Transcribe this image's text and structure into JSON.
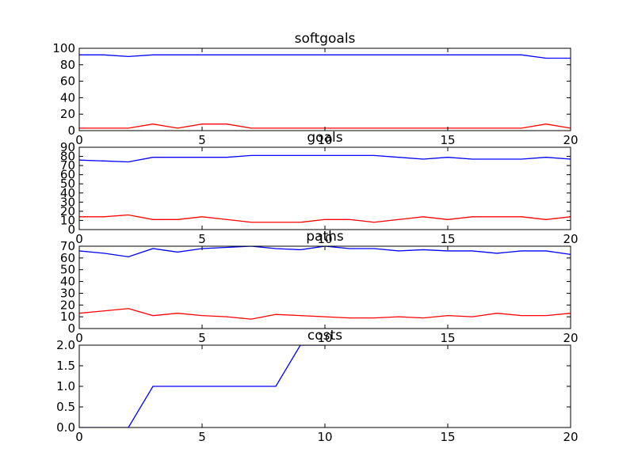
{
  "chart_data": [
    {
      "type": "line",
      "title": "softgoals",
      "xlim": [
        0,
        20
      ],
      "ylim": [
        0,
        100
      ],
      "xticks": [
        0,
        5,
        10,
        15,
        20
      ],
      "yticks": [
        0,
        20,
        40,
        60,
        80,
        100
      ],
      "x": [
        0,
        1,
        2,
        3,
        4,
        5,
        6,
        7,
        8,
        9,
        10,
        11,
        12,
        13,
        14,
        15,
        16,
        17,
        18,
        19,
        20
      ],
      "series": [
        {
          "color": "#0000ff",
          "values": [
            92,
            92,
            90,
            92,
            92,
            92,
            92,
            92,
            92,
            92,
            92,
            92,
            92,
            92,
            92,
            92,
            92,
            92,
            92,
            88,
            88
          ]
        },
        {
          "color": "#ff0000",
          "values": [
            3,
            3,
            3,
            8,
            3,
            8,
            8,
            3,
            3,
            3,
            3,
            3,
            3,
            3,
            3,
            3,
            3,
            3,
            3,
            8,
            3
          ]
        }
      ]
    },
    {
      "type": "line",
      "title": "goals",
      "xlim": [
        0,
        20
      ],
      "ylim": [
        0,
        90
      ],
      "xticks": [
        0,
        5,
        10,
        15,
        20
      ],
      "yticks": [
        0,
        10,
        20,
        30,
        40,
        50,
        60,
        70,
        80,
        90
      ],
      "x": [
        0,
        1,
        2,
        3,
        4,
        5,
        6,
        7,
        8,
        9,
        10,
        11,
        12,
        13,
        14,
        15,
        16,
        17,
        18,
        19,
        20
      ],
      "series": [
        {
          "color": "#0000ff",
          "values": [
            76,
            75,
            74,
            79,
            79,
            79,
            79,
            81,
            81,
            81,
            81,
            81,
            81,
            79,
            77,
            79,
            77,
            77,
            77,
            79,
            77
          ]
        },
        {
          "color": "#ff0000",
          "values": [
            14,
            14,
            16,
            11,
            11,
            14,
            11,
            8,
            8,
            8,
            11,
            11,
            8,
            11,
            14,
            11,
            14,
            14,
            14,
            11,
            14
          ]
        }
      ]
    },
    {
      "type": "line",
      "title": "paths",
      "xlim": [
        0,
        20
      ],
      "ylim": [
        0,
        70
      ],
      "xticks": [
        0,
        5,
        10,
        15,
        20
      ],
      "yticks": [
        0,
        10,
        20,
        30,
        40,
        50,
        60,
        70
      ],
      "x": [
        0,
        1,
        2,
        3,
        4,
        5,
        6,
        7,
        8,
        9,
        10,
        11,
        12,
        13,
        14,
        15,
        16,
        17,
        18,
        19,
        20
      ],
      "series": [
        {
          "color": "#0000ff",
          "values": [
            66,
            64,
            61,
            68,
            65,
            68,
            69,
            70,
            68,
            67,
            70,
            68,
            68,
            66,
            67,
            66,
            66,
            64,
            66,
            66,
            63
          ]
        },
        {
          "color": "#ff0000",
          "values": [
            13,
            15,
            17,
            11,
            13,
            11,
            10,
            8,
            12,
            11,
            10,
            9,
            9,
            10,
            9,
            11,
            10,
            13,
            11,
            11,
            13
          ]
        }
      ]
    },
    {
      "type": "line",
      "title": "costs",
      "xlim": [
        0,
        20
      ],
      "ylim": [
        0,
        2.0
      ],
      "xticks": [
        0,
        5,
        10,
        15,
        20
      ],
      "yticks": [
        0.0,
        0.5,
        1.0,
        1.5,
        2.0
      ],
      "ytick_decimals": 1,
      "x": [
        0,
        1,
        2,
        3,
        4,
        5,
        6,
        7,
        8,
        9,
        10
      ],
      "series": [
        {
          "color": "#0000ff",
          "values": [
            0,
            0,
            0,
            1,
            1,
            1,
            1,
            1,
            1,
            2,
            2
          ]
        }
      ]
    }
  ]
}
